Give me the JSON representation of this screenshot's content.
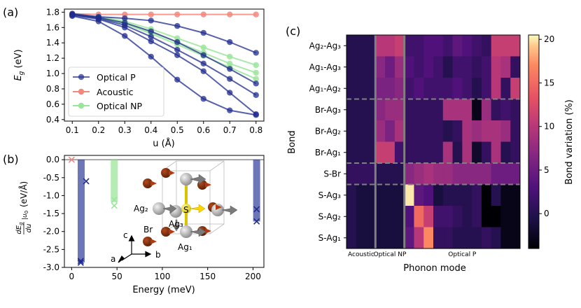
{
  "chart_data": [
    {
      "panel": "(a)",
      "type": "line",
      "xlabel": "u (Å)",
      "ylabel": "E_g (eV)",
      "xlim": [
        0.07,
        0.83
      ],
      "ylim": [
        0.38,
        1.84
      ],
      "xticks": [
        0.1,
        0.2,
        0.3,
        0.4,
        0.5,
        0.6,
        0.7,
        0.8
      ],
      "yticks": [
        0.4,
        0.6,
        0.8,
        1.0,
        1.2,
        1.4,
        1.6,
        1.8
      ],
      "legend": [
        "Optical P",
        "Acoustic",
        "Optical NP"
      ],
      "colors": {
        "Optical P": "#1f2c8f",
        "Acoustic": "#f4877c",
        "Optical NP": "#9be59b"
      },
      "series": [
        {
          "name": "Acoustic",
          "group": "Acoustic",
          "x": [
            0.1,
            0.2,
            0.3,
            0.4,
            0.5,
            0.6,
            0.7,
            0.8
          ],
          "y": [
            1.78,
            1.77,
            1.77,
            1.77,
            1.77,
            1.77,
            1.77,
            1.77
          ]
        },
        {
          "name": "Optical NP 1",
          "group": "Optical NP",
          "x": [
            0.1,
            0.2,
            0.3,
            0.4,
            0.5,
            0.6,
            0.7,
            0.8
          ],
          "y": [
            1.77,
            1.74,
            1.68,
            1.58,
            1.46,
            1.34,
            1.22,
            1.11
          ]
        },
        {
          "name": "Optical NP 2",
          "group": "Optical NP",
          "x": [
            0.1,
            0.2,
            0.3,
            0.4,
            0.5,
            0.6,
            0.7,
            0.8
          ],
          "y": [
            1.77,
            1.73,
            1.66,
            1.54,
            1.41,
            1.27,
            1.13,
            1.01
          ]
        },
        {
          "name": "Optical NP 3",
          "group": "Optical NP",
          "x": [
            0.1,
            0.2,
            0.3,
            0.4,
            0.5,
            0.6,
            0.7,
            0.8
          ],
          "y": [
            1.77,
            1.73,
            1.65,
            1.52,
            1.38,
            1.23,
            1.08,
            0.93
          ]
        },
        {
          "name": "Optical P 1",
          "group": "Optical P",
          "x": [
            0.1,
            0.2,
            0.3,
            0.4,
            0.5,
            0.6,
            0.7,
            0.8
          ],
          "y": [
            1.78,
            1.74,
            1.72,
            1.69,
            1.62,
            1.53,
            1.41,
            1.27
          ]
        },
        {
          "name": "Optical P 2",
          "group": "Optical P",
          "x": [
            0.1,
            0.2,
            0.3,
            0.4,
            0.5,
            0.6,
            0.7,
            0.8
          ],
          "y": [
            1.77,
            1.73,
            1.66,
            1.55,
            1.41,
            1.24,
            1.06,
            0.87
          ]
        },
        {
          "name": "Optical P 3",
          "group": "Optical P",
          "x": [
            0.1,
            0.2,
            0.3,
            0.4,
            0.5,
            0.6,
            0.7,
            0.8
          ],
          "y": [
            1.77,
            1.72,
            1.63,
            1.48,
            1.31,
            1.13,
            0.93,
            0.72
          ]
        },
        {
          "name": "Optical P 4",
          "group": "Optical P",
          "x": [
            0.1,
            0.2,
            0.3,
            0.4,
            0.5,
            0.6,
            0.7,
            0.8
          ],
          "y": [
            1.76,
            1.71,
            1.6,
            1.42,
            1.24,
            1.03,
            0.75,
            0.47
          ]
        },
        {
          "name": "Optical P 5",
          "group": "Optical P",
          "x": [
            0.1,
            0.2,
            0.3,
            0.4,
            0.5,
            0.6,
            0.7,
            0.8
          ],
          "y": [
            1.75,
            1.68,
            1.49,
            1.22,
            0.92,
            0.67,
            0.52,
            0.46
          ]
        }
      ]
    },
    {
      "panel": "(b)",
      "type": "bar",
      "xlabel": "Energy (meV)",
      "ylabel": "dE_g/du |u0 (eV/Å)",
      "xlim": [
        -8,
        212
      ],
      "ylim": [
        -3.0,
        0.12
      ],
      "xticks": [
        0,
        50,
        100,
        150,
        200
      ],
      "yticks": [
        0.0,
        -0.5,
        -1.0,
        -1.5,
        -2.0,
        -2.5,
        -3.0
      ],
      "bars": [
        {
          "group": "Optical P",
          "x": 10.5,
          "value": -2.86
        },
        {
          "group": "Optical NP",
          "x": 47,
          "value": -1.18
        },
        {
          "group": "Optical P",
          "x": 204,
          "value": -1.72
        }
      ],
      "markers": [
        {
          "group": "Acoustic",
          "x": 0,
          "y": 0.0
        },
        {
          "group": "Optical P",
          "x": 10,
          "y": -2.82
        },
        {
          "group": "Optical P",
          "x": 10,
          "y": -2.87
        },
        {
          "group": "Optical P",
          "x": 16,
          "y": -0.6
        },
        {
          "group": "Optical NP",
          "x": 47,
          "y": -1.12
        },
        {
          "group": "Optical NP",
          "x": 47,
          "y": -1.28
        },
        {
          "group": "Optical P",
          "x": 204,
          "y": -1.38
        },
        {
          "group": "Optical P",
          "x": 204,
          "y": -1.72
        }
      ],
      "structure_labels": [
        "Ag₂",
        "S",
        "Ag₃",
        "Br",
        "Ag₁",
        "c",
        "b",
        "a"
      ]
    },
    {
      "panel": "(c)",
      "type": "heatmap",
      "xlabel": "Phonon mode",
      "ylabel": "Bond",
      "colorbar_label": "Bond variation (%)",
      "zlim": [
        -4,
        20.5
      ],
      "colorbar_ticks": [
        0,
        5,
        10,
        15,
        20
      ],
      "column_groups": [
        {
          "label": "Acoustic",
          "count": 3
        },
        {
          "label": "Optical NP",
          "count": 3
        },
        {
          "label": "Optical P",
          "count": 12
        }
      ],
      "rows": [
        "Ag₂-Ag₃",
        "Ag₁-Ag₃",
        "Ag₁-Ag₂",
        "Br-Ag₃",
        "Br-Ag₂",
        "Br-Ag₁",
        "S-Br",
        "S-Ag₃",
        "S-Ag₂",
        "S-Ag₁"
      ],
      "values": [
        [
          0,
          0,
          0,
          10,
          10,
          11,
          2,
          2,
          3,
          3,
          2,
          4,
          3,
          2,
          1,
          11,
          11,
          11
        ],
        [
          0,
          0,
          0,
          7,
          5,
          8,
          3,
          2,
          3,
          2,
          0,
          2,
          2,
          1,
          2,
          10,
          9,
          1
        ],
        [
          0,
          0,
          0,
          6,
          6,
          7,
          2,
          3,
          2,
          2,
          2,
          3,
          2,
          0,
          2,
          10,
          1,
          11
        ],
        [
          0,
          0,
          0,
          7,
          8,
          8,
          1,
          1,
          1,
          1,
          9,
          9,
          9,
          -3,
          8,
          1,
          2,
          1
        ],
        [
          0,
          0,
          0,
          8,
          6,
          9,
          1,
          1,
          1,
          1,
          0,
          1,
          9,
          8,
          9,
          9,
          8,
          1
        ],
        [
          0,
          0,
          0,
          11,
          11,
          2,
          1,
          1,
          1,
          1,
          9,
          0,
          9,
          -2,
          1,
          9,
          0,
          1
        ],
        [
          1,
          1,
          1,
          0,
          0,
          0,
          7,
          8,
          9,
          8,
          8,
          7,
          7,
          7,
          7,
          5,
          5,
          5
        ],
        [
          0,
          -1,
          -1,
          -1,
          -1,
          -1,
          20,
          4,
          3,
          -1,
          0,
          0,
          0,
          1,
          -4,
          0,
          -3,
          -3
        ],
        [
          0,
          -1,
          -1,
          -1,
          -1,
          -1,
          3,
          15,
          11,
          2,
          2,
          1,
          0,
          1,
          -4,
          -4,
          -3,
          -3
        ],
        [
          0,
          -1,
          -1,
          -1,
          -1,
          -1,
          4,
          10,
          17,
          1,
          1,
          0,
          0,
          0,
          1,
          0,
          -3,
          -3
        ]
      ]
    }
  ]
}
